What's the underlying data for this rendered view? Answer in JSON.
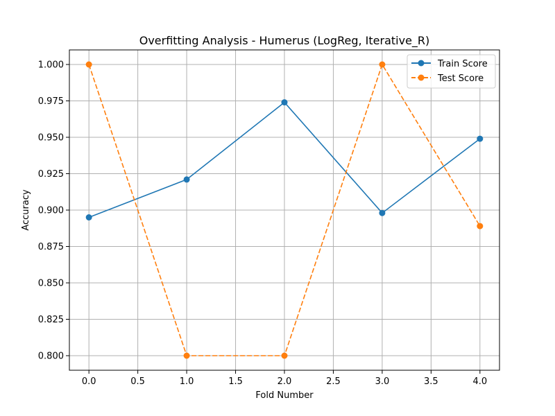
{
  "chart_data": {
    "type": "line",
    "title": "Overfitting Analysis - Humerus (LogReg, Iterative_R)",
    "xlabel": "Fold Number",
    "ylabel": "Accuracy",
    "x": [
      0,
      1,
      2,
      3,
      4
    ],
    "xlim": [
      -0.2,
      4.2
    ],
    "ylim": [
      0.79,
      1.01
    ],
    "xticks": [
      0.0,
      0.5,
      1.0,
      1.5,
      2.0,
      2.5,
      3.0,
      3.5,
      4.0
    ],
    "xtick_labels": [
      "0.0",
      "0.5",
      "1.0",
      "1.5",
      "2.0",
      "2.5",
      "3.0",
      "3.5",
      "4.0"
    ],
    "yticks": [
      0.8,
      0.825,
      0.85,
      0.875,
      0.9,
      0.925,
      0.95,
      0.975,
      1.0
    ],
    "ytick_labels": [
      "0.800",
      "0.825",
      "0.850",
      "0.875",
      "0.900",
      "0.925",
      "0.950",
      "0.975",
      "1.000"
    ],
    "grid": true,
    "legend_position": "top-right",
    "series": [
      {
        "name": "Train Score",
        "values": [
          0.895,
          0.921,
          0.974,
          0.898,
          0.949
        ],
        "color": "#1f77b4",
        "linestyle": "solid",
        "marker": "circle"
      },
      {
        "name": "Test Score",
        "values": [
          1.0,
          0.8,
          0.8,
          1.0,
          0.889
        ],
        "color": "#ff7f0e",
        "linestyle": "dashed",
        "marker": "circle"
      }
    ]
  }
}
